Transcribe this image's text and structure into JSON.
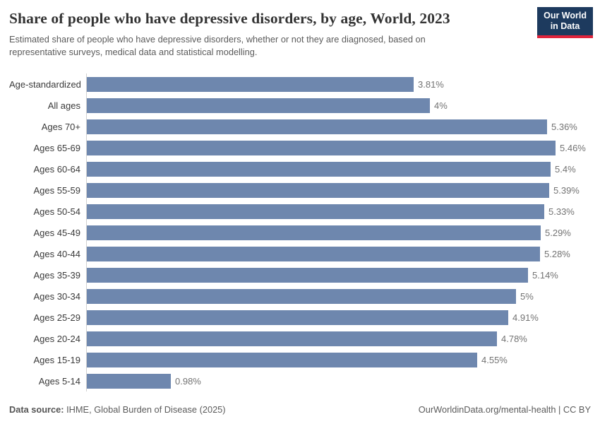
{
  "header": {
    "title": "Share of people who have depressive disorders, by age, World, 2023",
    "subtitle_lines": [
      "Estimated share of people who have depressive disorders, whether or not they are diagnosed, based on",
      "representative surveys, medical data and statistical modelling."
    ],
    "logo": {
      "line1": "Our World",
      "line2": "in Data"
    }
  },
  "chart_data": {
    "type": "bar",
    "orientation": "horizontal",
    "title": "Share of people who have depressive disorders, by age, World, 2023",
    "categories": [
      "Age-standardized",
      "All ages",
      "Ages 70+",
      "Ages 65-69",
      "Ages 60-64",
      "Ages 55-59",
      "Ages 50-54",
      "Ages 45-49",
      "Ages 40-44",
      "Ages 35-39",
      "Ages 30-34",
      "Ages 25-29",
      "Ages 20-24",
      "Ages 15-19",
      "Ages 5-14"
    ],
    "values": [
      3.81,
      4,
      5.36,
      5.46,
      5.4,
      5.39,
      5.33,
      5.29,
      5.28,
      5.14,
      5,
      4.91,
      4.78,
      4.55,
      0.98
    ],
    "value_labels": [
      "3.81%",
      "4%",
      "5.36%",
      "5.46%",
      "5.4%",
      "5.39%",
      "5.33%",
      "5.29%",
      "5.28%",
      "5.14%",
      "5%",
      "4.91%",
      "4.78%",
      "4.55%",
      "0.98%"
    ],
    "unit": "%",
    "xlabel": "",
    "ylabel": "",
    "xlim": [
      0,
      5.46
    ],
    "grid": false,
    "legend": false,
    "bar_color": "#6e87ae",
    "axis_line_color": "#d0d0d0"
  },
  "footer": {
    "source_label": "Data source:",
    "source_text": " IHME, Global Burden of Disease (2025)",
    "credit": "OurWorldinData.org/mental-health | CC BY"
  }
}
